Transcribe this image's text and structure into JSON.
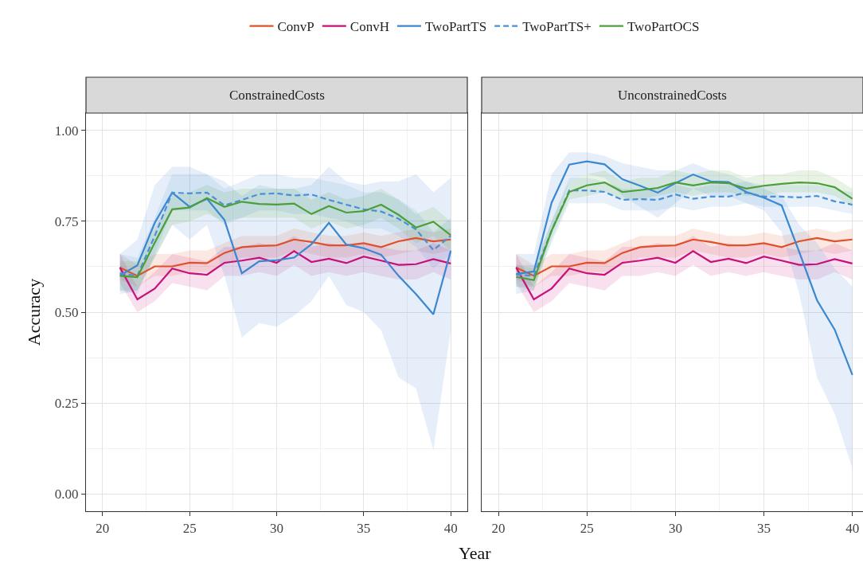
{
  "chart_data": [
    {
      "type": "line",
      "title": "ConstrainedCosts",
      "xlabel": "Year",
      "ylabel": "Accuracy",
      "legend": "top",
      "grid": true,
      "x": [
        21,
        22,
        23,
        24,
        25,
        26,
        27,
        28,
        29,
        30,
        31,
        32,
        33,
        34,
        35,
        36,
        37,
        38,
        39,
        40
      ],
      "xlim": [
        19.05,
        40.95
      ],
      "xticks": [
        20,
        25,
        30,
        35,
        40
      ],
      "ylim": [
        -0.048,
        1.048
      ],
      "yticks": [
        {
          "value": 0,
          "label": "0.00"
        },
        {
          "value": 0.25,
          "label": "0.25"
        },
        {
          "value": 0.5,
          "label": "0.50"
        },
        {
          "value": 0.75,
          "label": "0.75"
        },
        {
          "value": 1,
          "label": "1.00"
        }
      ],
      "series": [
        {
          "name": "ConvP",
          "color": "#e0502a",
          "line_style": "solid",
          "values": [
            0.623,
            0.6,
            0.626,
            0.626,
            0.636,
            0.635,
            0.663,
            0.679,
            0.682,
            0.684,
            0.7,
            0.693,
            0.684,
            0.684,
            0.69,
            0.679,
            0.695,
            0.704,
            0.695,
            0.7
          ],
          "lower": [
            0.59,
            0.57,
            0.6,
            0.6,
            0.61,
            0.61,
            0.63,
            0.65,
            0.65,
            0.65,
            0.67,
            0.66,
            0.65,
            0.65,
            0.66,
            0.65,
            0.66,
            0.67,
            0.66,
            0.67
          ],
          "upper": [
            0.66,
            0.63,
            0.66,
            0.66,
            0.67,
            0.67,
            0.69,
            0.71,
            0.71,
            0.71,
            0.73,
            0.72,
            0.71,
            0.71,
            0.72,
            0.71,
            0.72,
            0.73,
            0.72,
            0.73
          ]
        },
        {
          "name": "ConvH",
          "color": "#c8107a",
          "line_style": "solid",
          "values": [
            0.623,
            0.535,
            0.565,
            0.62,
            0.607,
            0.603,
            0.636,
            0.642,
            0.65,
            0.636,
            0.668,
            0.638,
            0.647,
            0.635,
            0.653,
            0.642,
            0.63,
            0.632,
            0.646,
            0.634
          ],
          "lower": [
            0.58,
            0.5,
            0.53,
            0.58,
            0.57,
            0.56,
            0.6,
            0.6,
            0.61,
            0.6,
            0.63,
            0.6,
            0.61,
            0.6,
            0.61,
            0.6,
            0.59,
            0.59,
            0.61,
            0.59
          ],
          "upper": [
            0.66,
            0.57,
            0.61,
            0.66,
            0.65,
            0.64,
            0.68,
            0.68,
            0.69,
            0.68,
            0.71,
            0.68,
            0.69,
            0.68,
            0.69,
            0.68,
            0.67,
            0.67,
            0.69,
            0.67
          ]
        },
        {
          "name": "TwoPartTS",
          "color": "#3b87d0",
          "line_style": "solid",
          "values": [
            0.601,
            0.629,
            0.746,
            0.829,
            0.79,
            0.812,
            0.754,
            0.607,
            0.64,
            0.643,
            0.65,
            0.687,
            0.746,
            0.686,
            0.676,
            0.658,
            0.6,
            0.55,
            0.494,
            0.669
          ],
          "lower": [
            0.55,
            0.56,
            0.65,
            0.74,
            0.7,
            0.74,
            0.6,
            0.43,
            0.47,
            0.46,
            0.49,
            0.53,
            0.6,
            0.52,
            0.5,
            0.45,
            0.32,
            0.29,
            0.12,
            0.45
          ],
          "upper": [
            0.66,
            0.7,
            0.85,
            0.9,
            0.9,
            0.88,
            0.86,
            0.82,
            0.85,
            0.84,
            0.84,
            0.85,
            0.9,
            0.86,
            0.85,
            0.86,
            0.86,
            0.88,
            0.83,
            0.87
          ]
        },
        {
          "name": "TwoPartTS+",
          "color": "#4a90d6",
          "line_style": "dashed",
          "values": [
            0.607,
            0.6,
            0.71,
            0.829,
            0.827,
            0.829,
            0.794,
            0.809,
            0.825,
            0.827,
            0.821,
            0.824,
            0.809,
            0.796,
            0.783,
            0.777,
            0.757,
            0.728,
            0.671,
            0.71
          ],
          "lower": [
            0.56,
            0.55,
            0.66,
            0.78,
            0.78,
            0.78,
            0.74,
            0.76,
            0.78,
            0.78,
            0.77,
            0.77,
            0.76,
            0.75,
            0.73,
            0.73,
            0.71,
            0.68,
            0.62,
            0.66
          ],
          "upper": [
            0.66,
            0.65,
            0.76,
            0.88,
            0.88,
            0.88,
            0.84,
            0.86,
            0.88,
            0.88,
            0.87,
            0.87,
            0.86,
            0.85,
            0.83,
            0.83,
            0.81,
            0.78,
            0.72,
            0.76
          ]
        },
        {
          "name": "TwoPartOCS",
          "color": "#4c9f38",
          "line_style": "solid",
          "values": [
            0.6,
            0.596,
            0.691,
            0.783,
            0.788,
            0.814,
            0.79,
            0.804,
            0.798,
            0.796,
            0.799,
            0.77,
            0.792,
            0.774,
            0.778,
            0.796,
            0.768,
            0.733,
            0.749,
            0.712
          ],
          "lower": [
            0.56,
            0.56,
            0.65,
            0.74,
            0.75,
            0.77,
            0.75,
            0.76,
            0.76,
            0.76,
            0.76,
            0.73,
            0.75,
            0.73,
            0.74,
            0.76,
            0.73,
            0.69,
            0.71,
            0.67
          ],
          "upper": [
            0.64,
            0.64,
            0.73,
            0.82,
            0.83,
            0.85,
            0.83,
            0.84,
            0.84,
            0.84,
            0.84,
            0.81,
            0.83,
            0.81,
            0.82,
            0.84,
            0.81,
            0.77,
            0.79,
            0.75
          ]
        }
      ]
    },
    {
      "type": "line",
      "title": "UnconstrainedCosts",
      "tick_labels": "x",
      "grid": true,
      "x": [
        21,
        22,
        23,
        24,
        25,
        26,
        27,
        28,
        29,
        30,
        31,
        32,
        33,
        34,
        35,
        36,
        37,
        38,
        39,
        40
      ],
      "xlim": [
        19.05,
        40.6
      ],
      "xticks": [
        20,
        25,
        30,
        35,
        40
      ],
      "ylim": [
        -0.048,
        1.048
      ],
      "yticks": [
        0,
        0.25,
        0.5,
        0.75,
        1
      ],
      "series": [
        {
          "color": "#e0502a",
          "line_style": "solid",
          "values": [
            0.623,
            0.6,
            0.626,
            0.626,
            0.636,
            0.635,
            0.663,
            0.679,
            0.682,
            0.684,
            0.7,
            0.693,
            0.684,
            0.684,
            0.69,
            0.679,
            0.695,
            0.704,
            0.695,
            0.7
          ],
          "lower": [
            0.59,
            0.57,
            0.6,
            0.6,
            0.61,
            0.61,
            0.63,
            0.65,
            0.65,
            0.65,
            0.67,
            0.66,
            0.65,
            0.65,
            0.66,
            0.65,
            0.66,
            0.67,
            0.66,
            0.67
          ],
          "upper": [
            0.66,
            0.63,
            0.66,
            0.66,
            0.67,
            0.67,
            0.69,
            0.71,
            0.71,
            0.71,
            0.73,
            0.72,
            0.71,
            0.71,
            0.72,
            0.71,
            0.72,
            0.73,
            0.72,
            0.73
          ]
        },
        {
          "color": "#c8107a",
          "line_style": "solid",
          "values": [
            0.623,
            0.535,
            0.565,
            0.62,
            0.607,
            0.603,
            0.636,
            0.642,
            0.65,
            0.636,
            0.668,
            0.638,
            0.647,
            0.635,
            0.653,
            0.642,
            0.63,
            0.632,
            0.646,
            0.634
          ],
          "lower": [
            0.58,
            0.5,
            0.53,
            0.58,
            0.57,
            0.56,
            0.6,
            0.6,
            0.61,
            0.6,
            0.63,
            0.6,
            0.61,
            0.6,
            0.61,
            0.6,
            0.59,
            0.59,
            0.61,
            0.59
          ],
          "upper": [
            0.66,
            0.57,
            0.61,
            0.66,
            0.65,
            0.64,
            0.68,
            0.68,
            0.69,
            0.68,
            0.71,
            0.68,
            0.69,
            0.68,
            0.69,
            0.68,
            0.67,
            0.67,
            0.69,
            0.67
          ]
        },
        {
          "color": "#3b87d0",
          "line_style": "solid",
          "values": [
            0.605,
            0.612,
            0.801,
            0.906,
            0.915,
            0.907,
            0.866,
            0.848,
            0.829,
            0.855,
            0.879,
            0.86,
            0.858,
            0.831,
            0.815,
            0.794,
            0.665,
            0.533,
            0.452,
            0.327
          ],
          "lower": [
            0.55,
            0.56,
            0.72,
            0.86,
            0.88,
            0.87,
            0.82,
            0.79,
            0.76,
            0.8,
            0.84,
            0.82,
            0.82,
            0.8,
            0.78,
            0.72,
            0.55,
            0.32,
            0.22,
            0.07
          ],
          "upper": [
            0.66,
            0.66,
            0.88,
            0.94,
            0.94,
            0.93,
            0.91,
            0.9,
            0.89,
            0.89,
            0.91,
            0.89,
            0.88,
            0.86,
            0.84,
            0.82,
            0.74,
            0.69,
            0.62,
            0.57
          ]
        },
        {
          "color": "#4a90d6",
          "line_style": "dashed",
          "values": [
            0.603,
            0.6,
            0.724,
            0.835,
            0.835,
            0.831,
            0.809,
            0.811,
            0.809,
            0.824,
            0.812,
            0.818,
            0.818,
            0.829,
            0.818,
            0.818,
            0.816,
            0.82,
            0.805,
            0.796
          ],
          "lower": [
            0.57,
            0.57,
            0.69,
            0.8,
            0.8,
            0.8,
            0.78,
            0.78,
            0.78,
            0.79,
            0.78,
            0.79,
            0.79,
            0.8,
            0.79,
            0.79,
            0.79,
            0.79,
            0.78,
            0.77
          ],
          "upper": [
            0.63,
            0.63,
            0.75,
            0.87,
            0.87,
            0.86,
            0.84,
            0.84,
            0.84,
            0.85,
            0.84,
            0.85,
            0.85,
            0.86,
            0.85,
            0.85,
            0.85,
            0.85,
            0.84,
            0.83
          ]
        },
        {
          "color": "#4c9f38",
          "line_style": "solid",
          "values": [
            0.597,
            0.588,
            0.724,
            0.831,
            0.849,
            0.857,
            0.831,
            0.836,
            0.842,
            0.857,
            0.849,
            0.857,
            0.855,
            0.84,
            0.848,
            0.853,
            0.857,
            0.855,
            0.844,
            0.812
          ],
          "lower": [
            0.57,
            0.56,
            0.7,
            0.81,
            0.82,
            0.83,
            0.81,
            0.81,
            0.82,
            0.83,
            0.82,
            0.83,
            0.83,
            0.82,
            0.82,
            0.83,
            0.83,
            0.83,
            0.82,
            0.79
          ],
          "upper": [
            0.63,
            0.62,
            0.75,
            0.86,
            0.88,
            0.89,
            0.86,
            0.87,
            0.87,
            0.89,
            0.88,
            0.89,
            0.89,
            0.87,
            0.88,
            0.88,
            0.89,
            0.89,
            0.87,
            0.84
          ]
        }
      ]
    }
  ]
}
